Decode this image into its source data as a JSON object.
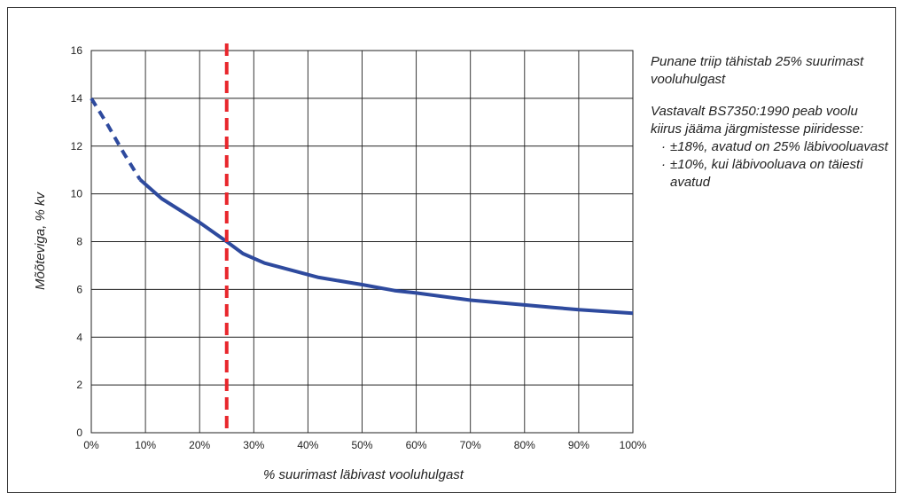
{
  "chart_data": {
    "type": "line",
    "xlabel": "% suurimast läbivast vooluhulgast",
    "ylabel": "Mõõteviga, % kv",
    "xlim": [
      0,
      100
    ],
    "ylim": [
      0,
      16
    ],
    "x_ticks": [
      0,
      10,
      20,
      30,
      40,
      50,
      60,
      70,
      80,
      90,
      100
    ],
    "x_tick_labels": [
      "0%",
      "10%",
      "20%",
      "30%",
      "40%",
      "50%",
      "60%",
      "70%",
      "80%",
      "90%",
      "100%"
    ],
    "y_ticks": [
      0,
      2,
      4,
      6,
      8,
      10,
      12,
      14,
      16
    ],
    "y_tick_labels": [
      "0",
      "2",
      "4",
      "6",
      "8",
      "10",
      "12",
      "14",
      "16"
    ],
    "grid": true,
    "series": [
      {
        "style": "dashed",
        "color": "#2e4a9e",
        "x": [
          0,
          3,
          6,
          9
        ],
        "y": [
          14.0,
          12.9,
          11.7,
          10.6
        ]
      },
      {
        "style": "solid",
        "color": "#2e4a9e",
        "x": [
          9,
          13,
          20,
          25,
          28,
          32,
          37,
          42,
          50,
          56,
          60,
          70,
          80,
          85,
          90,
          100
        ],
        "y": [
          10.6,
          9.8,
          8.8,
          8.0,
          7.5,
          7.1,
          6.8,
          6.5,
          6.2,
          5.95,
          5.85,
          5.55,
          5.35,
          5.25,
          5.15,
          5.0
        ]
      }
    ],
    "reference_line": {
      "x": 25,
      "orientation": "vertical",
      "style": "dashed",
      "color": "#e8262c"
    }
  },
  "notes": {
    "note1": "Punane triip tähistab 25% suurimast vooluhulgast",
    "note2": "Vastavalt BS7350:1990 peab voolu kiirus jääma järgmistesse piiridesse:",
    "bullets": [
      "±18%, avatud on 25% läbivooluavast",
      "±10%, kui läbivooluava on täiesti avatud"
    ],
    "bullet_symbol": "·"
  }
}
